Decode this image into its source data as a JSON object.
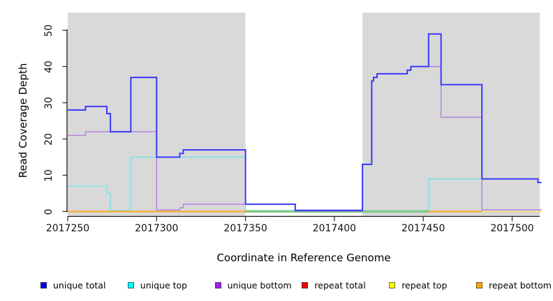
{
  "chart_data": {
    "type": "line",
    "subtype": "step-coverage",
    "xlabel": "Coordinate in Reference Genome",
    "ylabel": "Read Coverage Depth",
    "xlim": [
      2017250,
      2017516.5
    ],
    "ylim": [
      0,
      55
    ],
    "grid": false,
    "x_ticks": [
      2017250,
      2017300,
      2017350,
      2017400,
      2017450,
      2017500
    ],
    "y_ticks": [
      0,
      10,
      20,
      30,
      40,
      50
    ],
    "repeat_region_shading": {
      "color": "#d9d9d9",
      "regions": [
        [
          2017250,
          2017350
        ],
        [
          2017415.8,
          2017515.5
        ]
      ]
    },
    "series": [
      {
        "name": "repeat total",
        "line_color": "#e57d9b",
        "boundaries": [
          2017250,
          2017516.5
        ],
        "values": [
          0
        ]
      },
      {
        "name": "repeat top",
        "line_color": "#f5f078",
        "boundaries": [
          2017250,
          2017516.5
        ],
        "values": [
          0
        ]
      },
      {
        "name": "repeat bottom",
        "line_color": "#ffa41c",
        "boundaries": [
          2017250,
          2017516.5
        ],
        "values": [
          0
        ]
      },
      {
        "name": "unique top",
        "line_color": "#7de2e2",
        "boundaries": [
          2017250,
          2017272,
          2017274,
          2017285.5,
          2017350,
          2017453,
          2017514.5,
          2017516.5
        ],
        "values": [
          7,
          5,
          0,
          15,
          0,
          9,
          8
        ]
      },
      {
        "name": "unique bottom",
        "line_color": "#b27fdf",
        "boundaries": [
          2017250,
          2017260,
          2017300,
          2017313,
          2017315,
          2017378,
          2017415.8,
          2017421,
          2017422,
          2017424,
          2017441,
          2017443,
          2017460,
          2017483,
          2017516.5
        ],
        "values": [
          21,
          22,
          0,
          1,
          2,
          0,
          13,
          36,
          37,
          38,
          39,
          40,
          26,
          0
        ]
      },
      {
        "name": "unique total",
        "line_color": "#3a3afc",
        "boundaries": [
          2017250,
          2017260,
          2017272,
          2017274,
          2017285.5,
          2017300,
          2017313,
          2017315,
          2017350,
          2017378,
          2017415.8,
          2017421,
          2017422,
          2017424,
          2017441,
          2017443,
          2017453,
          2017460,
          2017483,
          2017514.5,
          2017516.5
        ],
        "values": [
          28,
          29,
          27,
          22,
          37,
          15,
          16,
          17,
          2,
          0,
          13,
          36,
          37,
          38,
          39,
          40,
          49,
          35,
          9,
          8
        ]
      }
    ],
    "baseline_overlap_segments": [
      {
        "from": 2017250,
        "to": 2017350,
        "color": "#ffa41c",
        "width": 2
      },
      {
        "from": 2017350,
        "to": 2017453,
        "color": "#84c98a",
        "width": 3.6
      },
      {
        "from": 2017453,
        "to": 2017483,
        "color": "#ffa41c",
        "width": 2
      }
    ]
  },
  "legend": {
    "items": [
      {
        "label": "unique total",
        "swatch": "#0000dd"
      },
      {
        "label": "unique top",
        "swatch": "#00ffff"
      },
      {
        "label": "unique bottom",
        "swatch": "#a020f0"
      },
      {
        "label": "repeat total",
        "swatch": "#ee0000"
      },
      {
        "label": "repeat top",
        "swatch": "#ffff00"
      },
      {
        "label": "repeat bottom",
        "swatch": "#ffa500"
      }
    ]
  }
}
